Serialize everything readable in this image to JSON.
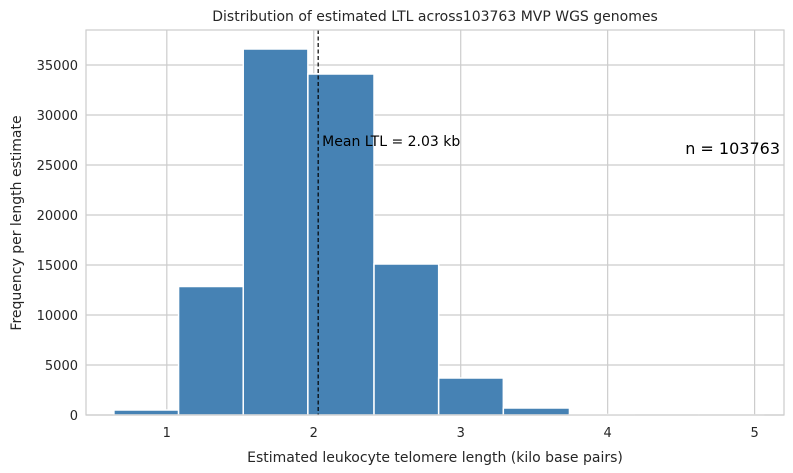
{
  "chart_data": {
    "type": "bar",
    "title": "Distribution of estimated LTL across103763 MVP WGS genomes",
    "xlabel": "Estimated leukocyte telomere length (kilo base pairs)",
    "ylabel": "Frequency per length estimate",
    "xlim": [
      0.45,
      5.2
    ],
    "ylim": [
      0,
      38500
    ],
    "x_ticks": [
      1,
      2,
      3,
      4,
      5
    ],
    "y_ticks": [
      0,
      5000,
      10000,
      15000,
      20000,
      25000,
      30000,
      35000
    ],
    "grid": true,
    "bins": [
      {
        "x0": 0.64,
        "x1": 1.08,
        "value": 500
      },
      {
        "x0": 1.08,
        "x1": 1.52,
        "value": 12850
      },
      {
        "x0": 1.52,
        "x1": 1.96,
        "value": 36600
      },
      {
        "x0": 1.96,
        "x1": 2.41,
        "value": 34100
      },
      {
        "x0": 2.41,
        "x1": 2.85,
        "value": 15100
      },
      {
        "x0": 2.85,
        "x1": 3.29,
        "value": 3700
      },
      {
        "x0": 3.29,
        "x1": 3.74,
        "value": 700
      },
      {
        "x0": 3.74,
        "x1": 4.18,
        "value": 50
      },
      {
        "x0": 4.18,
        "x1": 4.62,
        "value": 10
      },
      {
        "x0": 4.62,
        "x1": 5.06,
        "value": 5
      }
    ],
    "mean_line": {
      "x": 2.03,
      "label": "Mean LTL = 2.03 kb"
    },
    "n_label": "n = 103763",
    "colors": {
      "bar": "#4682b4",
      "grid": "#cccccc",
      "mean_line": "#000000"
    }
  }
}
